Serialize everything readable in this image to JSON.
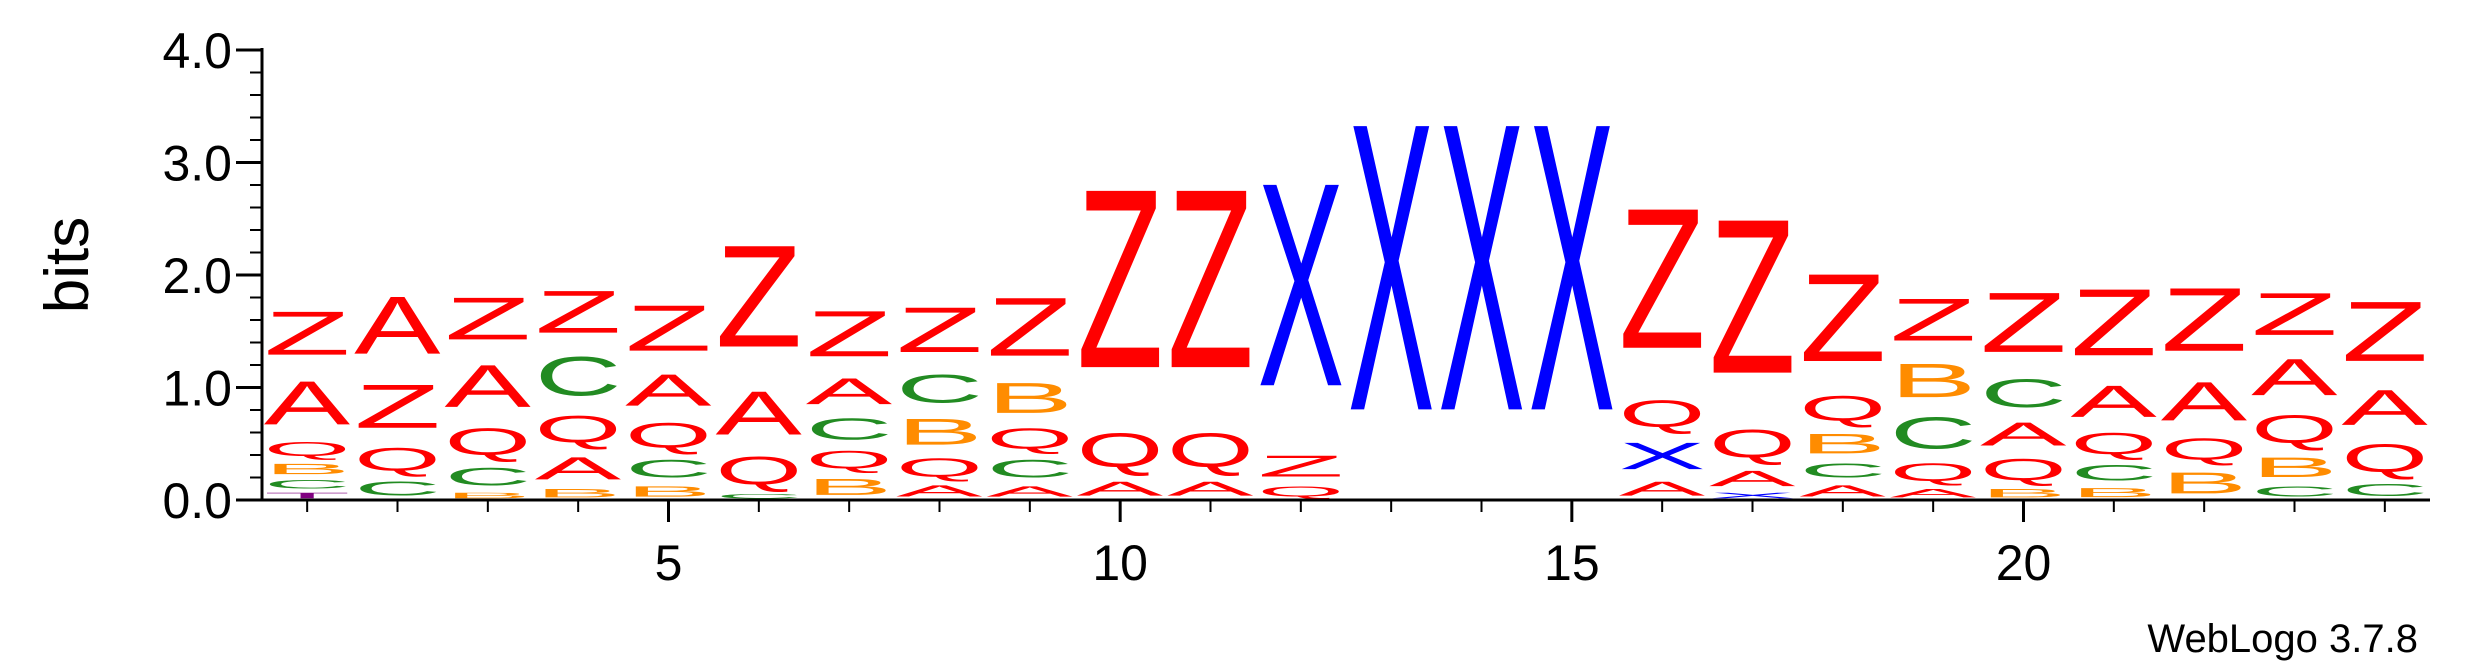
{
  "chart_data": {
    "type": "sequence-logo",
    "ylabel": "bits",
    "ylim": [
      0,
      4.0
    ],
    "yticks": [
      "0.0",
      "1.0",
      "2.0",
      "3.0",
      "4.0"
    ],
    "xticks": [
      5,
      10,
      15,
      20
    ],
    "positions": 24,
    "credit": "WebLogo 3.7.8",
    "colors": {
      "Z": "#ff0000",
      "A": "#ff0000",
      "Q": "#ff0000",
      "C": "#228b22",
      "B": "#ff8c00",
      "X": "#0000ff",
      "T": "#800080"
    },
    "stacks": [
      {
        "pos": 1,
        "letters": [
          [
            "T",
            0.08
          ],
          [
            "C",
            0.12
          ],
          [
            "B",
            0.15
          ],
          [
            "Q",
            0.2
          ],
          [
            "A",
            0.62
          ],
          [
            "Z",
            0.62
          ]
        ]
      },
      {
        "pos": 2,
        "letters": [
          [
            "C",
            0.2
          ],
          [
            "Q",
            0.32
          ],
          [
            "Z",
            0.62
          ],
          [
            "A",
            0.82
          ]
        ]
      },
      {
        "pos": 3,
        "letters": [
          [
            "B",
            0.08
          ],
          [
            "C",
            0.25
          ],
          [
            "Q",
            0.38
          ],
          [
            "A",
            0.6
          ],
          [
            "Z",
            0.6
          ]
        ]
      },
      {
        "pos": 4,
        "letters": [
          [
            "B",
            0.12
          ],
          [
            "A",
            0.32
          ],
          [
            "Q",
            0.38
          ],
          [
            "C",
            0.55
          ],
          [
            "Z",
            0.6
          ]
        ]
      },
      {
        "pos": 5,
        "letters": [
          [
            "B",
            0.15
          ],
          [
            "C",
            0.25
          ],
          [
            "Q",
            0.35
          ],
          [
            "A",
            0.45
          ],
          [
            "Z",
            0.65
          ]
        ]
      },
      {
        "pos": 6,
        "letters": [
          [
            "C",
            0.06
          ],
          [
            "Q",
            0.4
          ],
          [
            "A",
            0.62
          ],
          [
            "Z",
            1.45
          ]
        ]
      },
      {
        "pos": 7,
        "letters": [
          [
            "B",
            0.23
          ],
          [
            "Q",
            0.25
          ],
          [
            "C",
            0.3
          ],
          [
            "A",
            0.37
          ],
          [
            "Z",
            0.65
          ]
        ]
      },
      {
        "pos": 8,
        "letters": [
          [
            "A",
            0.16
          ],
          [
            "Q",
            0.26
          ],
          [
            "B",
            0.37
          ],
          [
            "C",
            0.4
          ],
          [
            "Z",
            0.64
          ]
        ]
      },
      {
        "pos": 9,
        "letters": [
          [
            "A",
            0.15
          ],
          [
            "C",
            0.25
          ],
          [
            "Q",
            0.29
          ],
          [
            "B",
            0.43
          ],
          [
            "Z",
            0.83
          ]
        ]
      },
      {
        "pos": 10,
        "letters": [
          [
            "A",
            0.2
          ],
          [
            "Q",
            0.48
          ],
          [
            "Z",
            2.55
          ]
        ]
      },
      {
        "pos": 11,
        "letters": [
          [
            "A",
            0.2
          ],
          [
            "Q",
            0.48
          ],
          [
            "Z",
            2.55
          ]
        ]
      },
      {
        "pos": 12,
        "letters": [
          [
            "Q",
            0.15
          ],
          [
            "Z",
            0.3
          ],
          [
            "X",
            2.9
          ]
        ]
      },
      {
        "pos": 13,
        "letters": [
          [
            "X",
            4.1
          ]
        ]
      },
      {
        "pos": 14,
        "letters": [
          [
            "X",
            4.1
          ]
        ]
      },
      {
        "pos": 15,
        "letters": [
          [
            "X",
            4.1
          ]
        ]
      },
      {
        "pos": 16,
        "letters": [
          [
            "A",
            0.2
          ],
          [
            "X",
            0.38
          ],
          [
            "Q",
            0.38
          ],
          [
            "Z",
            2.0
          ]
        ]
      },
      {
        "pos": 17,
        "letters": [
          [
            "X",
            0.08
          ],
          [
            "A",
            0.22
          ],
          [
            "Q",
            0.4
          ],
          [
            "Z",
            2.2
          ]
        ]
      },
      {
        "pos": 18,
        "letters": [
          [
            "A",
            0.16
          ],
          [
            "C",
            0.2
          ],
          [
            "B",
            0.28
          ],
          [
            "Q",
            0.35
          ],
          [
            "Z",
            1.25
          ]
        ]
      },
      {
        "pos": 19,
        "letters": [
          [
            "A",
            0.12
          ],
          [
            "Q",
            0.25
          ],
          [
            "C",
            0.45
          ],
          [
            "B",
            0.48
          ],
          [
            "Z",
            0.6
          ]
        ]
      },
      {
        "pos": 20,
        "letters": [
          [
            "B",
            0.12
          ],
          [
            "Q",
            0.3
          ],
          [
            "A",
            0.33
          ],
          [
            "C",
            0.4
          ],
          [
            "Z",
            0.85
          ]
        ]
      },
      {
        "pos": 21,
        "letters": [
          [
            "B",
            0.13
          ],
          [
            "C",
            0.22
          ],
          [
            "Q",
            0.3
          ],
          [
            "A",
            0.45
          ],
          [
            "Z",
            0.95
          ]
        ]
      },
      {
        "pos": 22,
        "letters": [
          [
            "B",
            0.3
          ],
          [
            "Q",
            0.3
          ],
          [
            "A",
            0.55
          ],
          [
            "Z",
            0.9
          ]
        ]
      },
      {
        "pos": 23,
        "letters": [
          [
            "C",
            0.15
          ],
          [
            "B",
            0.28
          ],
          [
            "Q",
            0.4
          ],
          [
            "A",
            0.52
          ],
          [
            "Z",
            0.6
          ]
        ]
      },
      {
        "pos": 24,
        "letters": [
          [
            "C",
            0.17
          ],
          [
            "Q",
            0.4
          ],
          [
            "A",
            0.5
          ],
          [
            "Z",
            0.85
          ]
        ]
      }
    ]
  }
}
